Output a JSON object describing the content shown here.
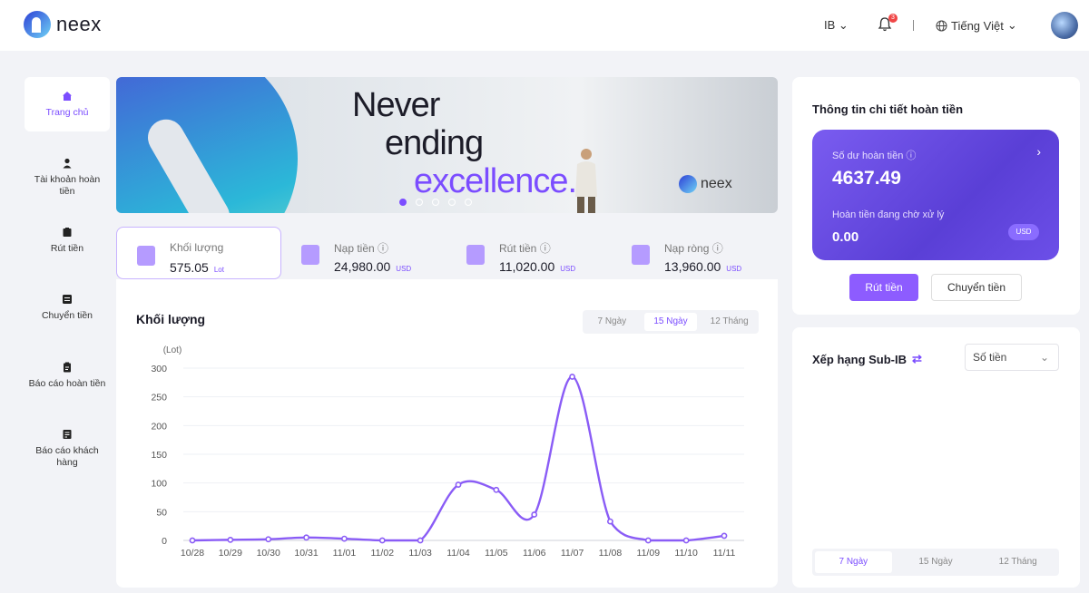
{
  "header": {
    "brand": "neex",
    "ib_label": "IB",
    "notification_count": "3",
    "language": "Tiếng Việt"
  },
  "sidebar": {
    "items": [
      {
        "label": "Trang chủ",
        "icon": "home-icon"
      },
      {
        "label": "Tài khoản hoàn tiền",
        "icon": "user-icon"
      },
      {
        "label": "Rút tiền",
        "icon": "wallet-icon"
      },
      {
        "label": "Chuyển tiền",
        "icon": "transfer-icon"
      },
      {
        "label": "Báo cáo hoàn tiền",
        "icon": "report-icon"
      },
      {
        "label": "Báo cáo khách hàng",
        "icon": "customer-report-icon"
      }
    ]
  },
  "banner": {
    "line1": "Never",
    "line2": "ending",
    "line3": "excellence.",
    "brand": "neex"
  },
  "stats": [
    {
      "label": "Khối lượng",
      "value": "575.05",
      "unit": "Lot"
    },
    {
      "label": "Nạp tiền",
      "value": "24,980.00",
      "unit": "USD"
    },
    {
      "label": "Rút tiền",
      "value": "11,020.00",
      "unit": "USD"
    },
    {
      "label": "Nạp ròng",
      "value": "13,960.00",
      "unit": "USD"
    }
  ],
  "chart_card": {
    "title": "Khối lượng",
    "range_tabs": [
      "7 Ngày",
      "15 Ngày",
      "12 Tháng"
    ],
    "active_range": "15 Ngày"
  },
  "chart_data": {
    "type": "line",
    "ylabel": "(Lot)",
    "ylim": [
      0,
      300
    ],
    "yticks": [
      0,
      50,
      100,
      150,
      200,
      250,
      300
    ],
    "categories": [
      "10/28",
      "10/29",
      "10/30",
      "10/31",
      "11/01",
      "11/02",
      "11/03",
      "11/04",
      "11/05",
      "11/06",
      "11/07",
      "11/08",
      "11/09",
      "11/10",
      "11/11"
    ],
    "values": [
      0,
      1,
      2,
      5,
      3,
      0,
      0,
      97,
      88,
      45,
      285,
      33,
      0,
      0,
      8
    ],
    "color": "#8a5cf6",
    "grid": true
  },
  "refund_card": {
    "title": "Thông tin chi tiết hoàn tiền",
    "balance_label": "Số dư hoàn tiền",
    "balance_value": "4637.49",
    "pending_label": "Hoàn tiền đang chờ xử lý",
    "pending_value": "0.00",
    "currency": "USD",
    "withdraw_button": "Rút tiền",
    "transfer_button": "Chuyển tiền"
  },
  "ranking_card": {
    "title": "Xếp hạng Sub-IB",
    "select_value": "Số tiền",
    "tabs": [
      "7 Ngày",
      "15 Ngày",
      "12 Tháng"
    ]
  }
}
